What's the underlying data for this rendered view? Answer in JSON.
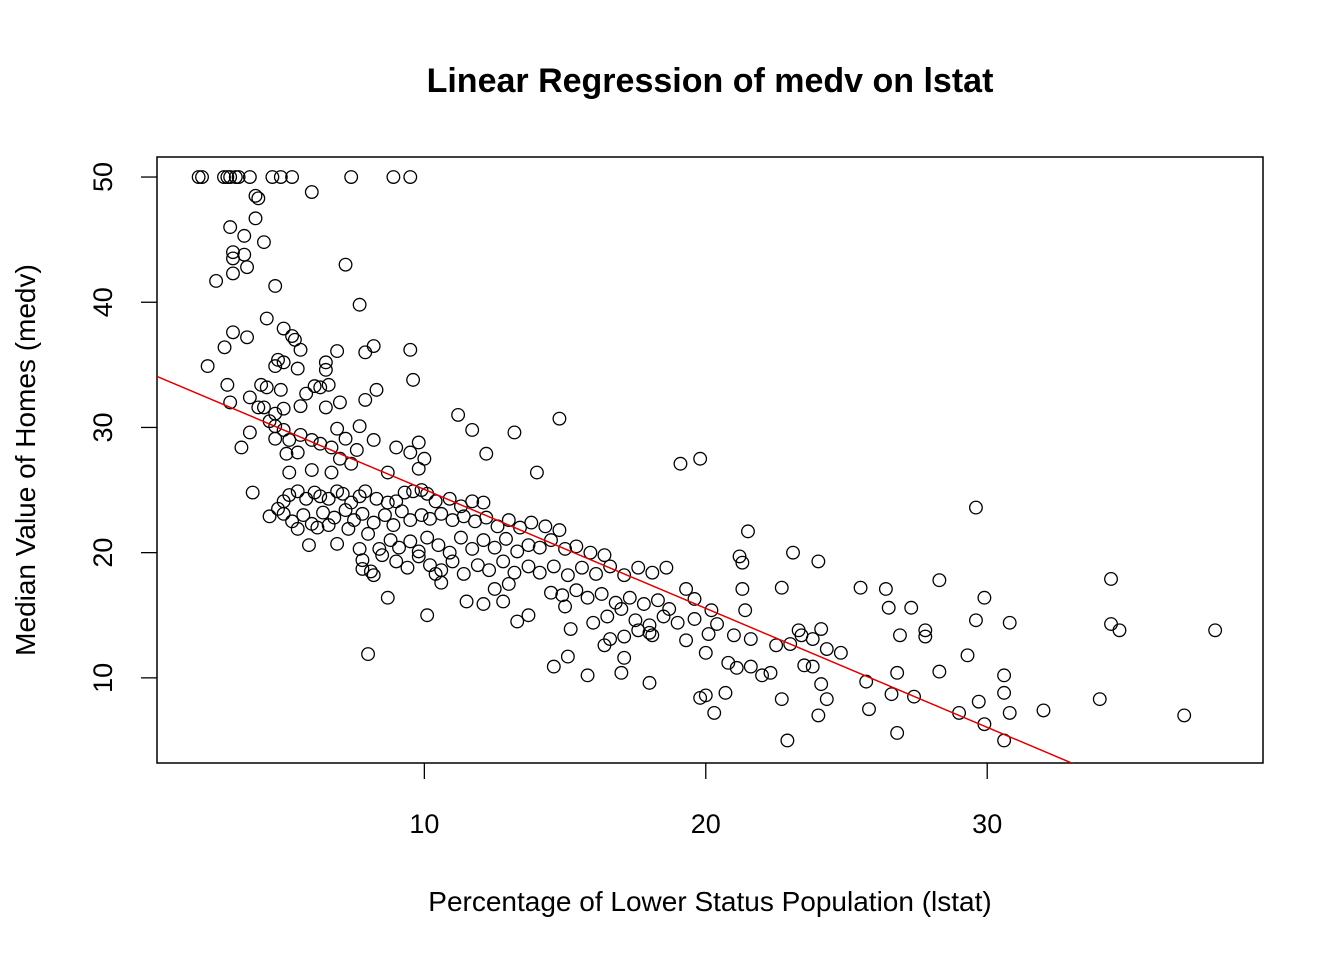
{
  "chart_data": {
    "type": "scatter",
    "title": "Linear Regression of medv on lstat",
    "xlabel": "Percentage of Lower Status Population (lstat)",
    "ylabel": "Median Value of Homes (medv)",
    "xlim": [
      0.5,
      39.8
    ],
    "ylim": [
      3.2,
      51.6
    ],
    "xticks": [
      10,
      20,
      30
    ],
    "yticks": [
      10,
      20,
      30,
      40,
      50
    ],
    "xtick_labels": [
      "10",
      "20",
      "30"
    ],
    "ytick_labels": [
      "10",
      "20",
      "30",
      "40",
      "50"
    ],
    "grid": false,
    "legend": "none",
    "colors": {
      "points": "#000000",
      "fit_line": "#e00000"
    },
    "fit_line": {
      "intercept": 34.55,
      "slope": -0.95
    },
    "points": [
      [
        1.98,
        50
      ],
      [
        2.1,
        50
      ],
      [
        2.88,
        50
      ],
      [
        3.0,
        50
      ],
      [
        3.1,
        50
      ],
      [
        3.3,
        50
      ],
      [
        3.4,
        50
      ],
      [
        3.8,
        50
      ],
      [
        4.6,
        50
      ],
      [
        4.9,
        50
      ],
      [
        5.3,
        50
      ],
      [
        7.4,
        50
      ],
      [
        8.9,
        50
      ],
      [
        9.5,
        50
      ],
      [
        6.0,
        48.8
      ],
      [
        4.0,
        48.5
      ],
      [
        4.1,
        48.3
      ],
      [
        4.0,
        46.7
      ],
      [
        3.1,
        46.0
      ],
      [
        4.3,
        44.8
      ],
      [
        3.6,
        45.3
      ],
      [
        3.2,
        44.0
      ],
      [
        3.6,
        43.8
      ],
      [
        3.2,
        43.5
      ],
      [
        3.7,
        42.8
      ],
      [
        3.2,
        42.3
      ],
      [
        2.6,
        41.7
      ],
      [
        7.2,
        43.0
      ],
      [
        4.7,
        41.3
      ],
      [
        7.7,
        39.8
      ],
      [
        4.4,
        38.7
      ],
      [
        3.2,
        37.6
      ],
      [
        3.7,
        37.2
      ],
      [
        5.0,
        37.9
      ],
      [
        5.4,
        37.0
      ],
      [
        5.3,
        37.3
      ],
      [
        2.9,
        36.4
      ],
      [
        5.6,
        36.2
      ],
      [
        6.9,
        36.1
      ],
      [
        7.9,
        36.0
      ],
      [
        8.2,
        36.5
      ],
      [
        9.5,
        36.2
      ],
      [
        2.3,
        34.9
      ],
      [
        4.8,
        35.4
      ],
      [
        5.0,
        35.2
      ],
      [
        6.5,
        35.2
      ],
      [
        4.7,
        34.9
      ],
      [
        5.5,
        34.7
      ],
      [
        6.5,
        34.6
      ],
      [
        3.0,
        33.4
      ],
      [
        4.2,
        33.4
      ],
      [
        4.4,
        33.2
      ],
      [
        4.9,
        33.0
      ],
      [
        6.1,
        33.3
      ],
      [
        6.3,
        33.2
      ],
      [
        6.6,
        33.4
      ],
      [
        8.3,
        33.0
      ],
      [
        9.6,
        33.8
      ],
      [
        3.1,
        32.0
      ],
      [
        3.8,
        32.4
      ],
      [
        4.1,
        31.6
      ],
      [
        4.3,
        31.6
      ],
      [
        4.7,
        31.1
      ],
      [
        5.0,
        31.5
      ],
      [
        5.6,
        31.7
      ],
      [
        5.8,
        32.7
      ],
      [
        6.5,
        31.6
      ],
      [
        7.0,
        32.0
      ],
      [
        7.9,
        32.2
      ],
      [
        4.5,
        30.5
      ],
      [
        4.7,
        30.1
      ],
      [
        5.0,
        29.8
      ],
      [
        4.7,
        29.1
      ],
      [
        5.2,
        29.0
      ],
      [
        5.6,
        29.4
      ],
      [
        6.0,
        29.0
      ],
      [
        6.9,
        29.9
      ],
      [
        7.2,
        29.1
      ],
      [
        7.7,
        30.1
      ],
      [
        8.2,
        29.0
      ],
      [
        11.2,
        31.0
      ],
      [
        11.7,
        29.8
      ],
      [
        13.2,
        29.6
      ],
      [
        14.8,
        30.7
      ],
      [
        3.8,
        29.6
      ],
      [
        3.5,
        28.4
      ],
      [
        5.1,
        27.9
      ],
      [
        5.5,
        28.0
      ],
      [
        6.3,
        28.7
      ],
      [
        6.7,
        28.4
      ],
      [
        7.6,
        28.2
      ],
      [
        9.0,
        28.4
      ],
      [
        9.5,
        28.0
      ],
      [
        9.8,
        28.8
      ],
      [
        12.2,
        27.9
      ],
      [
        19.1,
        27.1
      ],
      [
        19.8,
        27.5
      ],
      [
        10.0,
        27.5
      ],
      [
        9.8,
        26.7
      ],
      [
        8.7,
        26.4
      ],
      [
        6.0,
        26.6
      ],
      [
        5.2,
        26.4
      ],
      [
        6.7,
        26.4
      ],
      [
        7.0,
        27.5
      ],
      [
        7.4,
        27.1
      ],
      [
        14.0,
        26.4
      ],
      [
        3.9,
        24.8
      ],
      [
        4.5,
        22.9
      ],
      [
        4.8,
        23.5
      ],
      [
        5.0,
        24.1
      ],
      [
        5.2,
        24.6
      ],
      [
        5.5,
        24.9
      ],
      [
        5.8,
        24.3
      ],
      [
        6.1,
        24.8
      ],
      [
        6.3,
        24.5
      ],
      [
        6.6,
        24.3
      ],
      [
        6.9,
        24.9
      ],
      [
        7.1,
        24.7
      ],
      [
        7.4,
        24.0
      ],
      [
        7.7,
        24.5
      ],
      [
        7.9,
        24.9
      ],
      [
        8.3,
        24.3
      ],
      [
        8.7,
        24.0
      ],
      [
        9.0,
        24.1
      ],
      [
        9.3,
        24.8
      ],
      [
        9.6,
        24.9
      ],
      [
        9.9,
        25.0
      ],
      [
        10.1,
        24.7
      ],
      [
        10.4,
        24.1
      ],
      [
        10.9,
        24.3
      ],
      [
        11.3,
        23.7
      ],
      [
        11.7,
        24.1
      ],
      [
        12.1,
        24.0
      ],
      [
        5.0,
        23.1
      ],
      [
        5.3,
        22.5
      ],
      [
        5.7,
        23.0
      ],
      [
        6.0,
        22.3
      ],
      [
        6.4,
        23.2
      ],
      [
        6.8,
        22.8
      ],
      [
        7.2,
        23.4
      ],
      [
        7.5,
        22.6
      ],
      [
        7.8,
        23.1
      ],
      [
        8.2,
        22.4
      ],
      [
        8.6,
        23.0
      ],
      [
        8.9,
        22.2
      ],
      [
        9.2,
        23.3
      ],
      [
        9.5,
        22.6
      ],
      [
        9.9,
        23.0
      ],
      [
        10.2,
        22.7
      ],
      [
        10.6,
        23.1
      ],
      [
        11.0,
        22.6
      ],
      [
        11.4,
        22.9
      ],
      [
        11.8,
        22.5
      ],
      [
        12.2,
        22.8
      ],
      [
        12.6,
        22.1
      ],
      [
        13.0,
        22.6
      ],
      [
        13.4,
        22.0
      ],
      [
        13.8,
        22.4
      ],
      [
        14.3,
        22.1
      ],
      [
        14.8,
        21.8
      ],
      [
        5.5,
        21.9
      ],
      [
        5.9,
        20.6
      ],
      [
        6.2,
        22.0
      ],
      [
        6.6,
        22.2
      ],
      [
        6.9,
        20.7
      ],
      [
        7.3,
        21.9
      ],
      [
        7.7,
        20.3
      ],
      [
        8.0,
        21.5
      ],
      [
        8.4,
        20.3
      ],
      [
        8.8,
        21.0
      ],
      [
        9.1,
        20.4
      ],
      [
        9.5,
        20.9
      ],
      [
        9.8,
        20.1
      ],
      [
        10.1,
        21.2
      ],
      [
        10.5,
        20.6
      ],
      [
        10.9,
        20.0
      ],
      [
        11.3,
        21.2
      ],
      [
        11.7,
        20.3
      ],
      [
        12.1,
        21.0
      ],
      [
        12.5,
        20.4
      ],
      [
        12.9,
        21.1
      ],
      [
        13.3,
        20.1
      ],
      [
        13.7,
        20.6
      ],
      [
        14.1,
        20.4
      ],
      [
        14.5,
        21.0
      ],
      [
        15.0,
        20.3
      ],
      [
        15.4,
        20.5
      ],
      [
        15.9,
        20.0
      ],
      [
        16.4,
        19.8
      ],
      [
        7.8,
        19.4
      ],
      [
        8.1,
        18.5
      ],
      [
        8.5,
        19.8
      ],
      [
        9.0,
        19.3
      ],
      [
        9.4,
        18.8
      ],
      [
        9.8,
        19.7
      ],
      [
        10.2,
        19.0
      ],
      [
        10.6,
        18.6
      ],
      [
        11.0,
        19.3
      ],
      [
        11.4,
        18.3
      ],
      [
        11.9,
        19.0
      ],
      [
        12.3,
        18.6
      ],
      [
        12.8,
        19.3
      ],
      [
        13.2,
        18.4
      ],
      [
        13.7,
        18.9
      ],
      [
        14.1,
        18.4
      ],
      [
        14.6,
        18.9
      ],
      [
        15.1,
        18.2
      ],
      [
        15.6,
        18.8
      ],
      [
        16.1,
        18.3
      ],
      [
        16.6,
        18.9
      ],
      [
        17.1,
        18.2
      ],
      [
        17.6,
        18.8
      ],
      [
        18.1,
        18.4
      ],
      [
        18.6,
        18.8
      ],
      [
        7.8,
        18.7
      ],
      [
        8.2,
        18.2
      ],
      [
        10.4,
        18.3
      ],
      [
        10.6,
        17.6
      ],
      [
        12.5,
        17.1
      ],
      [
        13.0,
        17.5
      ],
      [
        14.5,
        16.8
      ],
      [
        14.9,
        16.6
      ],
      [
        15.4,
        17.0
      ],
      [
        15.8,
        16.4
      ],
      [
        16.3,
        16.7
      ],
      [
        16.8,
        16.0
      ],
      [
        17.3,
        16.4
      ],
      [
        17.8,
        15.9
      ],
      [
        18.3,
        16.2
      ],
      [
        18.7,
        15.5
      ],
      [
        19.3,
        17.1
      ],
      [
        19.6,
        16.3
      ],
      [
        20.2,
        15.4
      ],
      [
        21.3,
        17.1
      ],
      [
        22.7,
        17.2
      ],
      [
        21.2,
        19.7
      ],
      [
        21.3,
        19.2
      ],
      [
        23.1,
        20.0
      ],
      [
        24.0,
        19.3
      ],
      [
        8.7,
        16.4
      ],
      [
        10.1,
        15.0
      ],
      [
        11.5,
        16.1
      ],
      [
        12.1,
        15.9
      ],
      [
        12.8,
        16.1
      ],
      [
        13.7,
        15.0
      ],
      [
        15.0,
        15.7
      ],
      [
        16.0,
        14.4
      ],
      [
        16.5,
        14.9
      ],
      [
        17.0,
        15.5
      ],
      [
        17.5,
        14.6
      ],
      [
        18.0,
        14.2
      ],
      [
        18.5,
        14.9
      ],
      [
        19.0,
        14.4
      ],
      [
        19.6,
        14.7
      ],
      [
        20.4,
        14.3
      ],
      [
        21.4,
        15.4
      ],
      [
        25.5,
        17.2
      ],
      [
        26.4,
        17.1
      ],
      [
        26.5,
        15.6
      ],
      [
        27.3,
        15.6
      ],
      [
        28.3,
        17.8
      ],
      [
        29.9,
        16.4
      ],
      [
        34.4,
        17.9
      ],
      [
        29.6,
        23.6
      ],
      [
        21.5,
        21.7
      ],
      [
        13.3,
        14.5
      ],
      [
        15.2,
        13.9
      ],
      [
        16.6,
        13.1
      ],
      [
        17.1,
        13.3
      ],
      [
        17.6,
        13.8
      ],
      [
        18.1,
        13.4
      ],
      [
        19.3,
        13.0
      ],
      [
        20.1,
        13.5
      ],
      [
        21.0,
        13.4
      ],
      [
        21.6,
        13.1
      ],
      [
        22.5,
        12.6
      ],
      [
        23.0,
        12.7
      ],
      [
        23.4,
        13.4
      ],
      [
        23.8,
        13.1
      ],
      [
        24.3,
        12.3
      ],
      [
        24.8,
        12.0
      ],
      [
        26.9,
        13.4
      ],
      [
        27.8,
        13.3
      ],
      [
        27.8,
        13.8
      ],
      [
        29.6,
        14.6
      ],
      [
        30.8,
        14.4
      ],
      [
        34.4,
        14.3
      ],
      [
        34.7,
        13.8
      ],
      [
        38.1,
        13.8
      ],
      [
        23.3,
        13.8
      ],
      [
        24.1,
        13.9
      ],
      [
        15.1,
        11.7
      ],
      [
        16.4,
        12.6
      ],
      [
        17.1,
        11.6
      ],
      [
        18.0,
        13.6
      ],
      [
        20.0,
        12.0
      ],
      [
        20.8,
        11.2
      ],
      [
        21.1,
        10.8
      ],
      [
        21.6,
        10.9
      ],
      [
        22.0,
        10.2
      ],
      [
        22.3,
        10.4
      ],
      [
        23.5,
        11.0
      ],
      [
        23.8,
        10.9
      ],
      [
        24.1,
        9.5
      ],
      [
        24.3,
        8.3
      ],
      [
        25.7,
        9.7
      ],
      [
        26.6,
        8.7
      ],
      [
        26.8,
        10.4
      ],
      [
        27.4,
        8.5
      ],
      [
        28.3,
        10.5
      ],
      [
        29.3,
        11.8
      ],
      [
        30.6,
        10.2
      ],
      [
        30.6,
        8.8
      ],
      [
        29.7,
        8.1
      ],
      [
        14.6,
        10.9
      ],
      [
        15.8,
        10.2
      ],
      [
        17.0,
        10.4
      ],
      [
        18.0,
        9.6
      ],
      [
        8.0,
        11.9
      ],
      [
        19.8,
        8.4
      ],
      [
        20.0,
        8.6
      ],
      [
        20.3,
        7.2
      ],
      [
        20.7,
        8.8
      ],
      [
        22.7,
        8.3
      ],
      [
        24.0,
        7.0
      ],
      [
        25.8,
        7.5
      ],
      [
        26.8,
        5.6
      ],
      [
        29.0,
        7.2
      ],
      [
        29.9,
        6.3
      ],
      [
        30.6,
        5.0
      ],
      [
        30.8,
        7.2
      ],
      [
        32.0,
        7.4
      ],
      [
        34.0,
        8.3
      ],
      [
        37.0,
        7.0
      ],
      [
        22.9,
        5.0
      ]
    ]
  }
}
